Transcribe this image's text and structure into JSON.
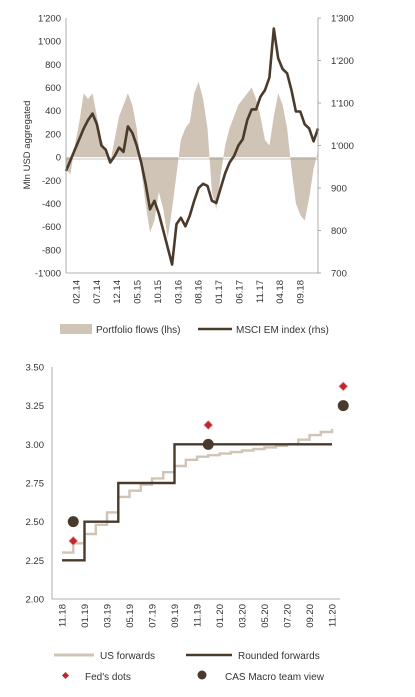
{
  "chart_data": [
    {
      "type": "area+line",
      "ylabel": "Mln USD aggregated",
      "y_left": {
        "min": -1000,
        "max": 1200,
        "ticks": [
          "-1'000",
          "-800",
          "-600",
          "-400",
          "-200",
          "0",
          "200",
          "400",
          "600",
          "800",
          "1'000",
          "1'200"
        ]
      },
      "y_right": {
        "min": 700,
        "max": 1300,
        "ticks": [
          "700",
          "800",
          "900",
          "1'000",
          "1'100",
          "1'200",
          "1'300"
        ]
      },
      "x_ticks": [
        "02.14",
        "07.14",
        "12.14",
        "05.15",
        "10.15",
        "03.16",
        "08.16",
        "01.17",
        "06.17",
        "11.17",
        "04.18",
        "09.18"
      ],
      "x_range": [
        "2014-02",
        "2018-11"
      ],
      "grid": false,
      "legend_position": "bottom",
      "series": [
        {
          "name": "Portfolio flows (lhs)",
          "kind": "area",
          "axis": "left",
          "color": "#cfc4b5",
          "points": [
            [
              "2014-02",
              -100
            ],
            [
              "2014-03",
              -150
            ],
            [
              "2014-04",
              100
            ],
            [
              "2014-05",
              300
            ],
            [
              "2014-06",
              550
            ],
            [
              "2014-07",
              500
            ],
            [
              "2014-08",
              550
            ],
            [
              "2014-09",
              350
            ],
            [
              "2014-10",
              150
            ],
            [
              "2014-11",
              50
            ],
            [
              "2014-12",
              -50
            ],
            [
              "2015-01",
              150
            ],
            [
              "2015-02",
              350
            ],
            [
              "2015-03",
              450
            ],
            [
              "2015-04",
              550
            ],
            [
              "2015-05",
              450
            ],
            [
              "2015-06",
              250
            ],
            [
              "2015-07",
              -100
            ],
            [
              "2015-08",
              -400
            ],
            [
              "2015-09",
              -650
            ],
            [
              "2015-10",
              -550
            ],
            [
              "2015-11",
              -300
            ],
            [
              "2015-12",
              -450
            ],
            [
              "2016-01",
              -700
            ],
            [
              "2016-02",
              -450
            ],
            [
              "2016-03",
              -150
            ],
            [
              "2016-04",
              150
            ],
            [
              "2016-05",
              250
            ],
            [
              "2016-06",
              300
            ],
            [
              "2016-07",
              550
            ],
            [
              "2016-08",
              650
            ],
            [
              "2016-09",
              500
            ],
            [
              "2016-10",
              250
            ],
            [
              "2016-11",
              -300
            ],
            [
              "2016-12",
              -450
            ],
            [
              "2017-01",
              -150
            ],
            [
              "2017-02",
              100
            ],
            [
              "2017-03",
              250
            ],
            [
              "2017-04",
              350
            ],
            [
              "2017-05",
              450
            ],
            [
              "2017-06",
              500
            ],
            [
              "2017-07",
              550
            ],
            [
              "2017-08",
              600
            ],
            [
              "2017-09",
              500
            ],
            [
              "2017-10",
              350
            ],
            [
              "2017-11",
              150
            ],
            [
              "2017-12",
              100
            ],
            [
              "2018-01",
              350
            ],
            [
              "2018-02",
              550
            ],
            [
              "2018-03",
              450
            ],
            [
              "2018-04",
              250
            ],
            [
              "2018-05",
              -100
            ],
            [
              "2018-06",
              -400
            ],
            [
              "2018-07",
              -500
            ],
            [
              "2018-08",
              -550
            ],
            [
              "2018-09",
              -350
            ],
            [
              "2018-10",
              -100
            ],
            [
              "2018-11",
              50
            ]
          ]
        },
        {
          "name": "MSCI EM index (rhs)",
          "kind": "line",
          "axis": "right",
          "color": "#4a3a2c",
          "points": [
            [
              "2014-02",
              940
            ],
            [
              "2014-03",
              965
            ],
            [
              "2014-04",
              990
            ],
            [
              "2014-05",
              1015
            ],
            [
              "2014-06",
              1040
            ],
            [
              "2014-07",
              1060
            ],
            [
              "2014-08",
              1075
            ],
            [
              "2014-09",
              1050
            ],
            [
              "2014-10",
              1000
            ],
            [
              "2014-11",
              990
            ],
            [
              "2014-12",
              960
            ],
            [
              "2015-01",
              975
            ],
            [
              "2015-02",
              995
            ],
            [
              "2015-03",
              985
            ],
            [
              "2015-04",
              1045
            ],
            [
              "2015-05",
              1030
            ],
            [
              "2015-06",
              1000
            ],
            [
              "2015-07",
              960
            ],
            [
              "2015-08",
              910
            ],
            [
              "2015-09",
              850
            ],
            [
              "2015-10",
              870
            ],
            [
              "2015-11",
              840
            ],
            [
              "2015-12",
              800
            ],
            [
              "2016-01",
              760
            ],
            [
              "2016-02",
              720
            ],
            [
              "2016-03",
              815
            ],
            [
              "2016-04",
              830
            ],
            [
              "2016-05",
              810
            ],
            [
              "2016-06",
              835
            ],
            [
              "2016-07",
              870
            ],
            [
              "2016-08",
              900
            ],
            [
              "2016-09",
              910
            ],
            [
              "2016-10",
              905
            ],
            [
              "2016-11",
              870
            ],
            [
              "2016-12",
              865
            ],
            [
              "2017-01",
              900
            ],
            [
              "2017-02",
              935
            ],
            [
              "2017-03",
              960
            ],
            [
              "2017-04",
              975
            ],
            [
              "2017-05",
              1000
            ],
            [
              "2017-06",
              1015
            ],
            [
              "2017-07",
              1060
            ],
            [
              "2017-08",
              1085
            ],
            [
              "2017-09",
              1085
            ],
            [
              "2017-10",
              1115
            ],
            [
              "2017-11",
              1130
            ],
            [
              "2017-12",
              1160
            ],
            [
              "2018-01",
              1275
            ],
            [
              "2018-02",
              1205
            ],
            [
              "2018-03",
              1180
            ],
            [
              "2018-04",
              1170
            ],
            [
              "2018-05",
              1130
            ],
            [
              "2018-06",
              1080
            ],
            [
              "2018-07",
              1080
            ],
            [
              "2018-08",
              1050
            ],
            [
              "2018-09",
              1040
            ],
            [
              "2018-10",
              1010
            ],
            [
              "2018-11",
              1040
            ]
          ]
        }
      ]
    },
    {
      "type": "line+scatter",
      "y": {
        "min": 2.0,
        "max": 3.5,
        "ticks": [
          "2.00",
          "2.25",
          "2.50",
          "2.75",
          "3.00",
          "3.25",
          "3.50"
        ]
      },
      "x_ticks": [
        "11.18",
        "01.19",
        "03.19",
        "05.19",
        "07.19",
        "09.19",
        "11.19",
        "01.20",
        "03.20",
        "05.20",
        "07.20",
        "09.20",
        "11.20"
      ],
      "x_range": [
        "2018-11",
        "2020-11"
      ],
      "grid": false,
      "legend_position": "bottom",
      "series": [
        {
          "name": "US forwards",
          "kind": "line",
          "color": "#cfc4b5",
          "points": [
            [
              "2018-11",
              2.3
            ],
            [
              "2018-12",
              2.36
            ],
            [
              "2019-01",
              2.42
            ],
            [
              "2019-02",
              2.48
            ],
            [
              "2019-03",
              2.56
            ],
            [
              "2019-04",
              2.66
            ],
            [
              "2019-05",
              2.7
            ],
            [
              "2019-06",
              2.74
            ],
            [
              "2019-07",
              2.78
            ],
            [
              "2019-08",
              2.82
            ],
            [
              "2019-09",
              2.86
            ],
            [
              "2019-10",
              2.9
            ],
            [
              "2019-11",
              2.92
            ],
            [
              "2019-12",
              2.93
            ],
            [
              "2020-01",
              2.94
            ],
            [
              "2020-02",
              2.95
            ],
            [
              "2020-03",
              2.96
            ],
            [
              "2020-04",
              2.97
            ],
            [
              "2020-05",
              2.98
            ],
            [
              "2020-06",
              2.99
            ],
            [
              "2020-07",
              3.0
            ],
            [
              "2020-08",
              3.03
            ],
            [
              "2020-09",
              3.06
            ],
            [
              "2020-10",
              3.08
            ],
            [
              "2020-11",
              3.1
            ]
          ]
        },
        {
          "name": "Rounded forwards",
          "kind": "step",
          "color": "#4a3a2c",
          "points": [
            [
              "2018-11",
              2.25
            ],
            [
              "2019-01",
              2.5
            ],
            [
              "2019-04",
              2.75
            ],
            [
              "2019-09",
              3.0
            ],
            [
              "2020-11",
              3.0
            ]
          ]
        },
        {
          "name": "Fed's dots",
          "kind": "scatter",
          "marker": "diamond",
          "color": "#c0262c",
          "points": [
            [
              "2018-12",
              2.375
            ],
            [
              "2019-12",
              3.125
            ],
            [
              "2020-12",
              3.375
            ]
          ]
        },
        {
          "name": "CAS Macro team view",
          "kind": "scatter",
          "marker": "circle",
          "color": "#4a3a2c",
          "points": [
            [
              "2018-12",
              2.5
            ],
            [
              "2019-12",
              3.0
            ],
            [
              "2020-12",
              3.25
            ]
          ]
        }
      ]
    }
  ]
}
